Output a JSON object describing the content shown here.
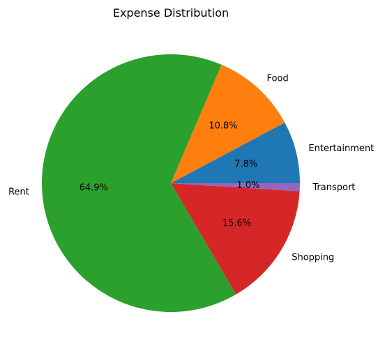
{
  "chart_data": {
    "type": "pie",
    "title": "Expense Distribution",
    "start_angle_deg": 0,
    "direction": "counterclockwise",
    "slices": [
      {
        "label": "Entertainment",
        "percent": 7.8,
        "pct_label": "7.8%",
        "color": "#1f77b4"
      },
      {
        "label": "Food",
        "percent": 10.8,
        "pct_label": "10.8%",
        "color": "#ff7f0e"
      },
      {
        "label": "Rent",
        "percent": 64.9,
        "pct_label": "64.9%",
        "color": "#2ca02c"
      },
      {
        "label": "Shopping",
        "percent": 15.6,
        "pct_label": "15.6%",
        "color": "#d62728"
      },
      {
        "label": "Transport",
        "percent": 1.0,
        "pct_label": "1.0%",
        "color": "#9467bd"
      }
    ]
  }
}
